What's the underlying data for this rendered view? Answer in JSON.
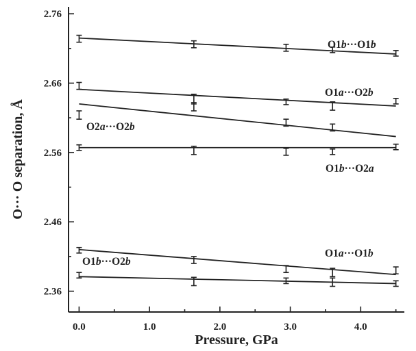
{
  "chart_data": {
    "type": "scatter",
    "xlabel": "Pressure, GPa",
    "ylabel": "O··· O separation, Å",
    "xlim": [
      -0.15,
      4.62
    ],
    "ylim": [
      2.33,
      2.77
    ],
    "xticks": [
      0.0,
      1.0,
      2.0,
      3.0,
      4.0
    ],
    "xtick_labels": [
      "0.0",
      "1.0",
      "2.0",
      "3.0",
      "4.0"
    ],
    "yticks": [
      2.36,
      2.46,
      2.56,
      2.66,
      2.76
    ],
    "ytick_labels": [
      "2.36",
      "2.46",
      "2.56",
      "2.66",
      "2.76"
    ],
    "series": [
      {
        "name": "O1b···O1b",
        "label_parts": [
          {
            "t": "O1",
            "i": false
          },
          {
            "t": "b",
            "i": true
          },
          {
            "t": "···O1",
            "i": false
          },
          {
            "t": "b",
            "i": true
          }
        ],
        "x": [
          0.0,
          1.63,
          2.94,
          3.6,
          4.5
        ],
        "y": [
          2.724,
          2.716,
          2.711,
          2.708,
          2.703
        ],
        "err": [
          0.005,
          0.005,
          0.005,
          0.004,
          0.004
        ],
        "fit": [
          2.725,
          2.702
        ]
      },
      {
        "name": "O1a···O2b",
        "label_parts": [
          {
            "t": "O1",
            "i": false
          },
          {
            "t": "a",
            "i": true
          },
          {
            "t": "···O2",
            "i": false
          },
          {
            "t": "b",
            "i": true
          }
        ],
        "x": [
          0.0,
          1.63,
          2.94,
          3.6,
          4.5
        ],
        "y": [
          2.656,
          2.637,
          2.633,
          2.627,
          2.634
        ],
        "err": [
          0.005,
          0.007,
          0.004,
          0.006,
          0.004
        ],
        "fit": [
          2.651,
          2.627
        ]
      },
      {
        "name": "O2a···O2b",
        "label_parts": [
          {
            "t": "O2",
            "i": false
          },
          {
            "t": "a",
            "i": true
          },
          {
            "t": "···O2",
            "i": false
          },
          {
            "t": "b",
            "i": true
          }
        ],
        "x": [
          0.0,
          1.63,
          2.94,
          3.6
        ],
        "y": [
          2.614,
          2.626,
          2.603,
          2.596
        ],
        "err": [
          0.006,
          0.006,
          0.005,
          0.005
        ],
        "fit": [
          2.63,
          2.583
        ]
      },
      {
        "name": "O1b···O2a",
        "label_parts": [
          {
            "t": "O1",
            "i": false
          },
          {
            "t": "b",
            "i": true
          },
          {
            "t": "···O2",
            "i": false
          },
          {
            "t": "a",
            "i": true
          }
        ],
        "x": [
          0.0,
          1.63,
          2.94,
          3.6,
          4.5
        ],
        "y": [
          2.567,
          2.563,
          2.561,
          2.561,
          2.568
        ],
        "err": [
          0.004,
          0.006,
          0.005,
          0.004,
          0.004
        ],
        "fit": [
          2.567,
          2.567
        ]
      },
      {
        "name": "O1a···O1b",
        "label_parts": [
          {
            "t": "O1",
            "i": false
          },
          {
            "t": "a",
            "i": true
          },
          {
            "t": "···O1",
            "i": false
          },
          {
            "t": "b",
            "i": true
          }
        ],
        "x": [
          0.0,
          1.63,
          2.94,
          3.6,
          4.5
        ],
        "y": [
          2.419,
          2.405,
          2.392,
          2.387,
          2.39
        ],
        "err": [
          0.004,
          0.005,
          0.005,
          0.006,
          0.005
        ],
        "fit": [
          2.42,
          2.384
        ]
      },
      {
        "name": "O1b···O2b",
        "label_parts": [
          {
            "t": "O1",
            "i": false
          },
          {
            "t": "b",
            "i": true
          },
          {
            "t": "···O2",
            "i": false
          },
          {
            "t": "b",
            "i": true
          }
        ],
        "x": [
          0.0,
          1.63,
          2.94,
          3.6,
          4.5
        ],
        "y": [
          2.383,
          2.374,
          2.375,
          2.373,
          2.371
        ],
        "err": [
          0.004,
          0.006,
          0.004,
          0.006,
          0.004
        ],
        "fit": [
          2.381,
          2.371
        ]
      }
    ]
  }
}
